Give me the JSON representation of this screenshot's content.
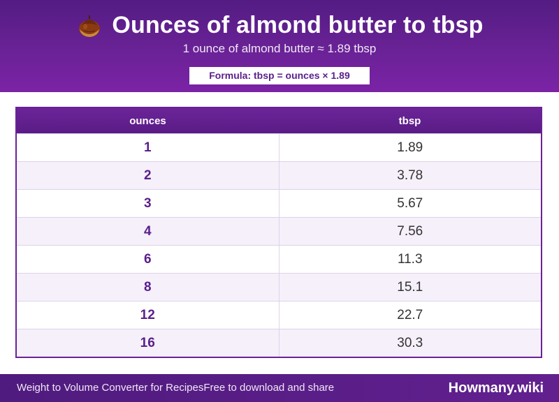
{
  "header": {
    "icon": "chestnut-icon",
    "title": "Ounces of almond butter to tbsp",
    "subtitle": "1 ounce of almond butter ≈ 1.89 tbsp",
    "formula": "Formula: tbsp = ounces × 1.89"
  },
  "table": {
    "columns": [
      "ounces",
      "tbsp"
    ],
    "rows": [
      {
        "ounces": "1",
        "tbsp": "1.89"
      },
      {
        "ounces": "2",
        "tbsp": "3.78"
      },
      {
        "ounces": "3",
        "tbsp": "5.67"
      },
      {
        "ounces": "4",
        "tbsp": "7.56"
      },
      {
        "ounces": "6",
        "tbsp": "11.3"
      },
      {
        "ounces": "8",
        "tbsp": "15.1"
      },
      {
        "ounces": "12",
        "tbsp": "22.7"
      },
      {
        "ounces": "16",
        "tbsp": "30.3"
      }
    ]
  },
  "footer": {
    "left_text": "Weight to Volume Converter for Recipes",
    "middle_text": "Free to download and share",
    "brand": "Howmany.wiki"
  },
  "colors": {
    "primary": "#6a2296",
    "accent_text": "#5a1f8b",
    "row_alt": "#f5f0fa"
  }
}
